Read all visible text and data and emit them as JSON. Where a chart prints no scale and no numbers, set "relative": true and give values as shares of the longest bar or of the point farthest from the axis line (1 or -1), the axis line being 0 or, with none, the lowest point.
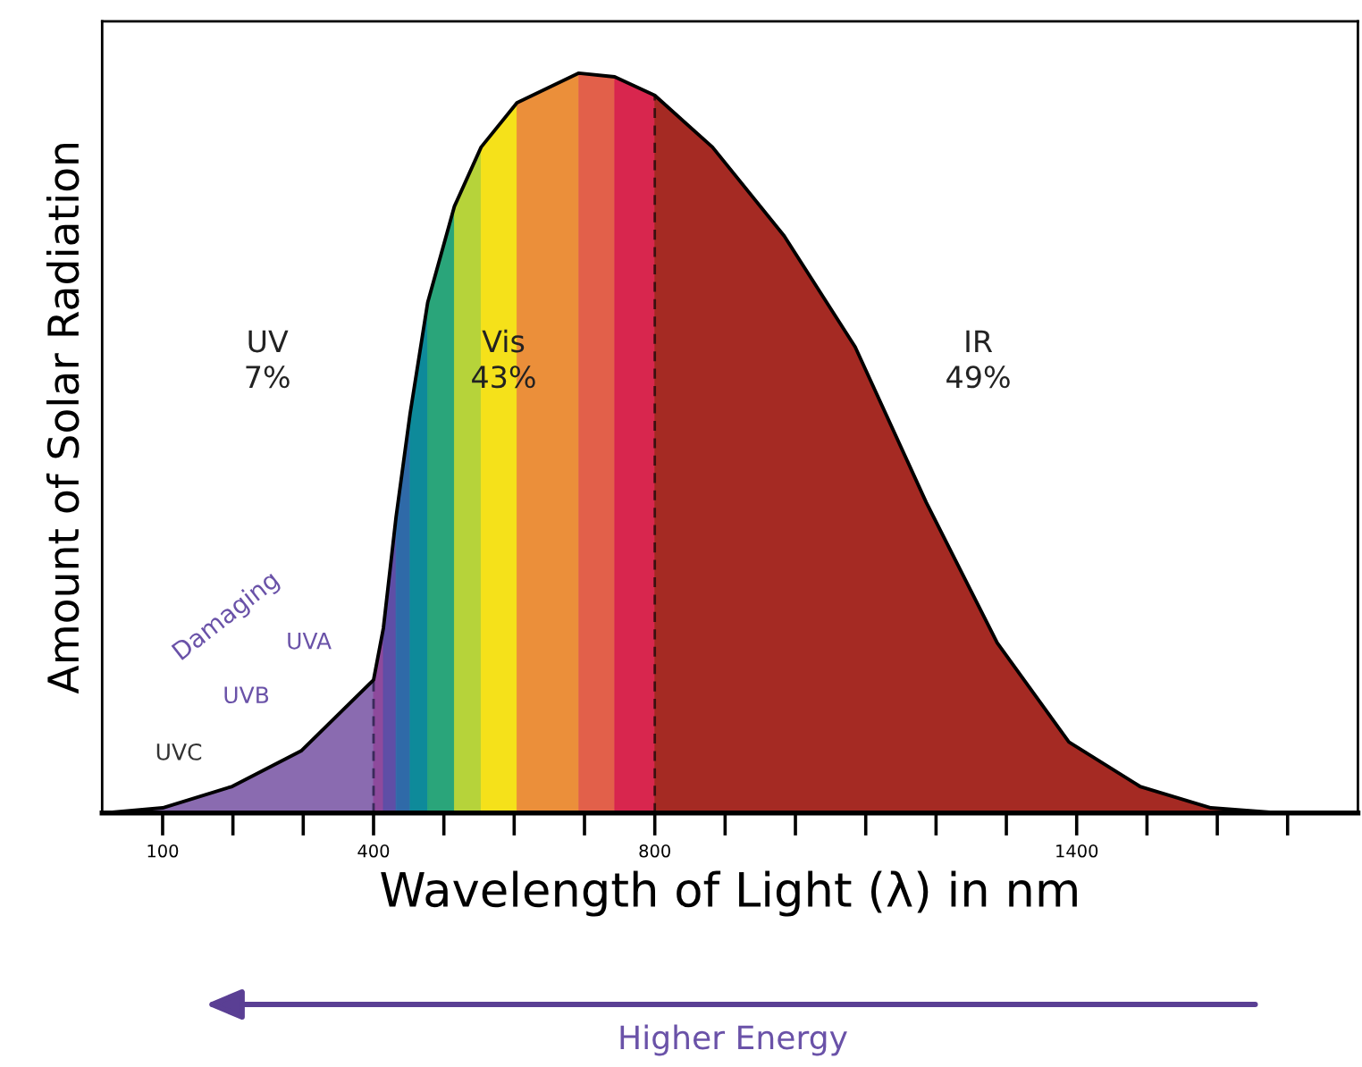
{
  "chart_data": {
    "type": "area",
    "relative": true,
    "xlabel": "Wavelength of Light (λ) in nm",
    "ylabel": "Amount of Solar Radiation",
    "xlim": [
      14,
      1800
    ],
    "xticks": [
      100,
      {
        "value": 200,
        "label": null
      },
      {
        "value": 300,
        "label": null
      },
      400,
      {
        "value": 500,
        "label": null
      },
      {
        "value": 600,
        "label": null
      },
      {
        "value": 700,
        "label": null
      },
      800,
      {
        "value": 900,
        "label": null
      },
      {
        "value": 1000,
        "label": null
      },
      {
        "value": 1100,
        "label": null
      },
      {
        "value": 1200,
        "label": null
      },
      {
        "value": 1300,
        "label": null
      },
      1400,
      {
        "value": 1500,
        "label": null
      },
      {
        "value": 1600,
        "label": null
      },
      {
        "value": 1700,
        "label": null
      }
    ],
    "tick_labels": "x",
    "grid": false,
    "series": [
      {
        "color": "#8a6bb0",
        "x": [
          14,
          100,
          199,
          297,
          400
        ],
        "values": [
          0,
          0.007,
          0.036,
          0.084,
          0.18
        ]
      },
      {
        "color": "#8e4a9c",
        "x": [
          400,
          414
        ],
        "values": [
          0.18,
          0.25
        ]
      },
      {
        "color": "#5f4ea6",
        "x": [
          414,
          432
        ],
        "values": [
          0.25,
          0.4
        ]
      },
      {
        "color": "#2f6aa8",
        "x": [
          432,
          452
        ],
        "values": [
          0.4,
          0.54
        ]
      },
      {
        "color": "#0e8a9a",
        "x": [
          452,
          477
        ],
        "values": [
          0.54,
          0.69
        ]
      },
      {
        "color": "#2aa57a",
        "x": [
          477,
          515
        ],
        "values": [
          0.69,
          0.82
        ]
      },
      {
        "color": "#b6d33a",
        "x": [
          515,
          553
        ],
        "values": [
          0.82,
          0.9
        ]
      },
      {
        "color": "#f5e11a",
        "x": [
          553,
          604
        ],
        "values": [
          0.9,
          0.96
        ]
      },
      {
        "color": "#eb8f3a",
        "x": [
          604,
          692
        ],
        "values": [
          0.96,
          1.0
        ]
      },
      {
        "color": "#e2604a",
        "x": [
          692,
          743
        ],
        "values": [
          1.0,
          0.995
        ]
      },
      {
        "color": "#d8264e",
        "x": [
          743,
          800
        ],
        "values": [
          0.995,
          0.97
        ]
      },
      {
        "color": "#a52a23",
        "x": [
          800,
          882,
          984,
          1085,
          1186,
          1287,
          1389,
          1490,
          1591,
          1692,
          1800
        ],
        "values": [
          0.97,
          0.9,
          0.78,
          0.63,
          0.42,
          0.23,
          0.096,
          0.036,
          0.007,
          0,
          0
        ]
      },
      {
        "type": "line",
        "color": "#000000",
        "x": [
          14,
          100,
          199,
          297,
          400,
          414,
          432,
          452,
          477,
          515,
          553,
          604,
          692,
          743,
          800,
          882,
          984,
          1085,
          1186,
          1287,
          1389,
          1490,
          1591,
          1692,
          1800
        ],
        "values": [
          0,
          0.007,
          0.036,
          0.084,
          0.18,
          0.25,
          0.4,
          0.54,
          0.69,
          0.82,
          0.9,
          0.96,
          1.0,
          0.995,
          0.97,
          0.9,
          0.78,
          0.63,
          0.42,
          0.23,
          0.096,
          0.036,
          0.007,
          0,
          0
        ]
      }
    ],
    "ref_lines": [
      {
        "axis": "x",
        "value": 400,
        "line_style": "dashed",
        "color": "#3a2a5a"
      },
      {
        "axis": "x",
        "value": 800,
        "line_style": "dashed",
        "color": "#3a1010"
      }
    ],
    "annotations": [
      "UV\n7%",
      "Vis\n43%",
      "IR\n49%",
      "Damaging",
      "UVA",
      "UVB",
      "UVC",
      "Higher Energy"
    ]
  }
}
